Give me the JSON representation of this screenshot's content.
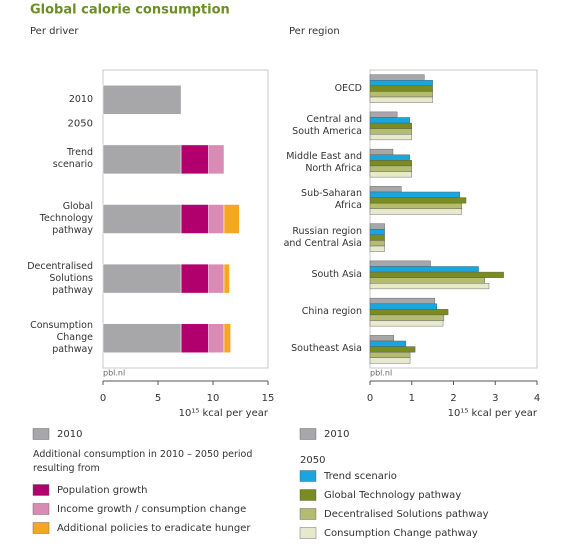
{
  "title": "Global calorie consumption",
  "chart_data": [
    {
      "type": "stacked_barh",
      "subtitle": "Per driver",
      "categories": [
        "2010",
        "Trend scenario",
        "Global Technology pathway",
        "Decentralised Solutions pathway",
        "Consumption Change pathway"
      ],
      "group_label": "2050",
      "series": [
        {
          "name": "2010",
          "color": "#a7a7a9",
          "values": [
            7.1,
            7.1,
            7.1,
            7.1,
            7.1
          ]
        },
        {
          "name": "Population growth",
          "color": "#b1006e",
          "values": [
            null,
            2.5,
            2.5,
            2.5,
            2.5
          ]
        },
        {
          "name": "Income growth / consumption change",
          "color": "#d98bb6",
          "values": [
            null,
            1.4,
            1.4,
            1.4,
            1.4
          ]
        },
        {
          "name": "Additional policies to eradicate hunger",
          "color": "#f5a623",
          "values": [
            null,
            null,
            1.4,
            0.5,
            0.6
          ]
        }
      ],
      "legend_title": "Additional consumption in 2010 – 2050 period resulting from",
      "xlim": [
        0,
        15
      ],
      "xticks": [
        0,
        5,
        10,
        15
      ],
      "xlabel": "10¹⁵ kcal per year",
      "source": "pbl.nl"
    },
    {
      "type": "grouped_barh",
      "subtitle": "Per region",
      "categories": [
        "OECD",
        "Central and South America",
        "Middle East and North Africa",
        "Sub-Saharan Africa",
        "Russian region and Central Asia",
        "South Asia",
        "China region",
        "Southeast Asia"
      ],
      "series": [
        {
          "name": "2010",
          "color": "#a7a7a9",
          "values": [
            1.3,
            0.65,
            0.55,
            0.75,
            0.35,
            1.45,
            1.55,
            0.57
          ]
        },
        {
          "name": "Trend scenario",
          "color": "#19a6de",
          "values": [
            1.5,
            0.95,
            0.95,
            2.15,
            0.35,
            2.6,
            1.6,
            0.86
          ]
        },
        {
          "name": "Global Technology pathway",
          "color": "#7a8b1f",
          "values": [
            1.5,
            1.0,
            1.0,
            2.3,
            0.35,
            3.2,
            1.87,
            1.08
          ]
        },
        {
          "name": "Decentralised Solutions pathway",
          "color": "#b4bc73",
          "values": [
            1.5,
            1.0,
            1.0,
            2.2,
            0.35,
            2.75,
            1.77,
            0.96
          ]
        },
        {
          "name": "Consumption Change pathway",
          "color": "#e7e9cd",
          "values": [
            1.5,
            1.0,
            1.0,
            2.2,
            0.35,
            2.85,
            1.75,
            0.96
          ]
        }
      ],
      "legend_title": "2050",
      "xlim": [
        0,
        4
      ],
      "xticks": [
        0,
        1,
        2,
        3,
        4
      ],
      "xlabel": "10¹⁵ kcal per year",
      "source": "pbl.nl"
    }
  ]
}
